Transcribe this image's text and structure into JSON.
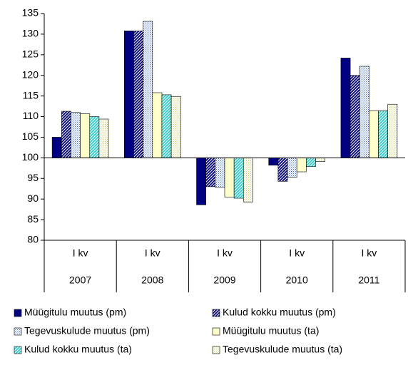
{
  "chart_data": {
    "type": "bar",
    "category_sublabels": [
      "I kv",
      "I kv",
      "I kv",
      "I kv",
      "I kv"
    ],
    "categories": [
      "2007",
      "2008",
      "2009",
      "2010",
      "2011"
    ],
    "series": [
      {
        "name": "Müügitulu muutus (pm)",
        "color": "#000080",
        "pattern": "solid",
        "values": [
          105,
          130.8,
          88.6,
          98.2,
          124.2
        ]
      },
      {
        "name": "Kulud kokku muutus (pm)",
        "color": "#000080",
        "pattern": "diagonal",
        "values": [
          111.3,
          130.8,
          93,
          94.3,
          120
        ]
      },
      {
        "name": "Tegevuskulude muutus (pm)",
        "color": "#3366cc",
        "pattern": "dots",
        "values": [
          111,
          133.1,
          92.8,
          95.3,
          122.2
        ]
      },
      {
        "name": "Müügitulu muutus (ta)",
        "color": "#ffffcc",
        "pattern": "solid",
        "values": [
          110.7,
          115.8,
          90.5,
          96.6,
          111.4
        ]
      },
      {
        "name": "Kulud kokku muutus (ta)",
        "color": "#33cccc",
        "pattern": "diagonal",
        "values": [
          110,
          115.3,
          90.2,
          97.9,
          111.4
        ]
      },
      {
        "name": "Tegevuskulude muutus (ta)",
        "color": "#cccc66",
        "pattern": "dots",
        "values": [
          109.4,
          114.9,
          89.3,
          99.1,
          113
        ]
      }
    ],
    "ylim": [
      80,
      135
    ],
    "yticks": [
      80,
      85,
      90,
      95,
      100,
      105,
      110,
      115,
      120,
      125,
      130,
      135
    ],
    "x_axis_crosses": 100,
    "grid": false,
    "legend": "bottom"
  }
}
